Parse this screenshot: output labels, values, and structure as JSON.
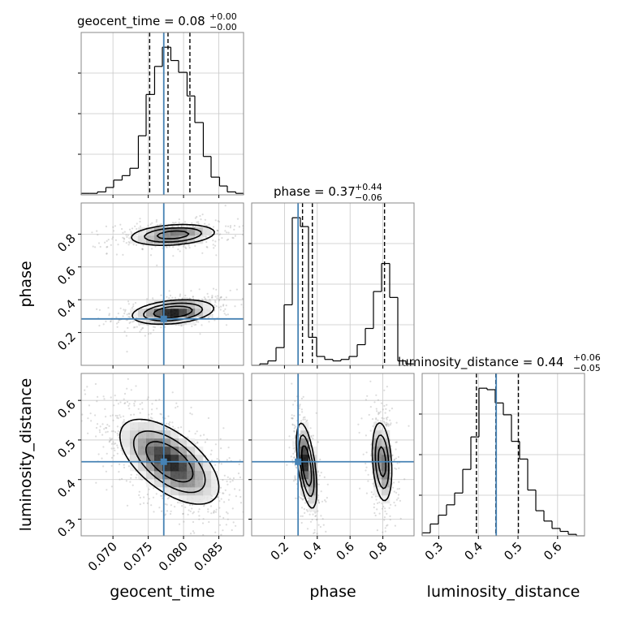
{
  "chart_data": {
    "type": "corner",
    "parameters": [
      "geocent_time",
      "phase",
      "luminosity_distance"
    ],
    "truth": {
      "geocent_time": 0.0772,
      "phase": 0.283,
      "luminosity_distance": 0.445
    },
    "colors": {
      "truth": "#4682b4",
      "hist": "#000000",
      "grid": "#c8c8c8",
      "frame": "#888888"
    },
    "grid": true,
    "titles": {
      "geocent_time": {
        "name": "geocent_time",
        "value": "0.08",
        "plus": "+0.00",
        "minus": "−0.00"
      },
      "phase": {
        "name": "phase",
        "value": "0.37",
        "plus": "+0.44",
        "minus": "−0.06"
      },
      "luminosity_distance": {
        "name": "luminosity_distance",
        "value": "0.44",
        "plus": "+0.06",
        "minus": "−0.05"
      }
    },
    "axes": {
      "geocent_time": {
        "range": [
          0.0655,
          0.0885
        ],
        "ticks": [
          0.07,
          0.075,
          0.08,
          0.085
        ],
        "tick_labels": [
          "0.070",
          "0.075",
          "0.080",
          "0.085"
        ],
        "label": "geocent_time"
      },
      "phase": {
        "range": [
          0.0,
          0.99
        ],
        "ticks": [
          0.2,
          0.4,
          0.6,
          0.8
        ],
        "tick_labels": [
          "0.2",
          "0.4",
          "0.6",
          "0.8"
        ],
        "label": "phase"
      },
      "luminosity_distance": {
        "range": [
          0.258,
          0.668
        ],
        "ticks": [
          0.3,
          0.4,
          0.5,
          0.6
        ],
        "tick_labels": [
          "0.3",
          "0.4",
          "0.5",
          "0.6"
        ],
        "label": "luminosity_distance"
      }
    },
    "histograms": {
      "geocent_time": {
        "bin_edges": [
          0.0655,
          0.0667,
          0.0678,
          0.069,
          0.0701,
          0.0713,
          0.0724,
          0.0736,
          0.0747,
          0.0759,
          0.077,
          0.0782,
          0.0793,
          0.0805,
          0.0816,
          0.0828,
          0.0839,
          0.0851,
          0.0862,
          0.0874,
          0.0885
        ],
        "counts": [
          0.01,
          0.01,
          0.02,
          0.05,
          0.1,
          0.13,
          0.18,
          0.4,
          0.68,
          0.87,
          1.0,
          0.91,
          0.83,
          0.67,
          0.49,
          0.26,
          0.12,
          0.06,
          0.02,
          0.01
        ],
        "quantiles": [
          0.0752,
          0.0778,
          0.0809
        ]
      },
      "phase": {
        "bin_edges": [
          0.0,
          0.0495,
          0.099,
          0.1485,
          0.198,
          0.2475,
          0.297,
          0.3465,
          0.396,
          0.4455,
          0.495,
          0.5445,
          0.594,
          0.6435,
          0.693,
          0.7425,
          0.792,
          0.8415,
          0.891,
          0.9405,
          0.99
        ],
        "counts": [
          0.0,
          0.01,
          0.03,
          0.12,
          0.41,
          1.0,
          0.94,
          0.19,
          0.06,
          0.04,
          0.03,
          0.04,
          0.06,
          0.14,
          0.25,
          0.5,
          0.69,
          0.46,
          0.03,
          0.01
        ],
        "quantiles": [
          0.31,
          0.37,
          0.81
        ]
      },
      "luminosity_distance": {
        "bin_edges": [
          0.258,
          0.2785,
          0.299,
          0.3195,
          0.34,
          0.3605,
          0.381,
          0.4015,
          0.422,
          0.4425,
          0.463,
          0.4835,
          0.504,
          0.5245,
          0.545,
          0.5655,
          0.586,
          0.6065,
          0.627,
          0.6475,
          0.668
        ],
        "counts": [
          0.02,
          0.08,
          0.14,
          0.21,
          0.29,
          0.45,
          0.67,
          1.0,
          0.99,
          0.9,
          0.82,
          0.64,
          0.52,
          0.31,
          0.17,
          0.1,
          0.05,
          0.03,
          0.01,
          0.0
        ],
        "quantiles": [
          0.395,
          0.444,
          0.501
        ]
      }
    },
    "joint_2d": [
      {
        "x": "geocent_time",
        "y": "phase",
        "modes": [
          {
            "cx": 0.0785,
            "cy": 0.325,
            "sx": 0.0028,
            "sy": 0.036,
            "rho": 0.3,
            "weight": 0.55
          },
          {
            "cx": 0.0785,
            "cy": 0.795,
            "sx": 0.003,
            "sy": 0.032,
            "rho": 0.25,
            "weight": 0.45
          }
        ]
      },
      {
        "x": "geocent_time",
        "y": "luminosity_distance",
        "modes": [
          {
            "cx": 0.078,
            "cy": 0.445,
            "sx": 0.0034,
            "sy": 0.052,
            "rho": -0.6,
            "weight": 1.0
          }
        ]
      },
      {
        "x": "phase",
        "y": "luminosity_distance",
        "modes": [
          {
            "cx": 0.335,
            "cy": 0.435,
            "sx": 0.03,
            "sy": 0.052,
            "rho": -0.55,
            "weight": 0.55
          },
          {
            "cx": 0.795,
            "cy": 0.445,
            "sx": 0.03,
            "sy": 0.05,
            "rho": -0.25,
            "weight": 0.45
          }
        ]
      }
    ]
  }
}
